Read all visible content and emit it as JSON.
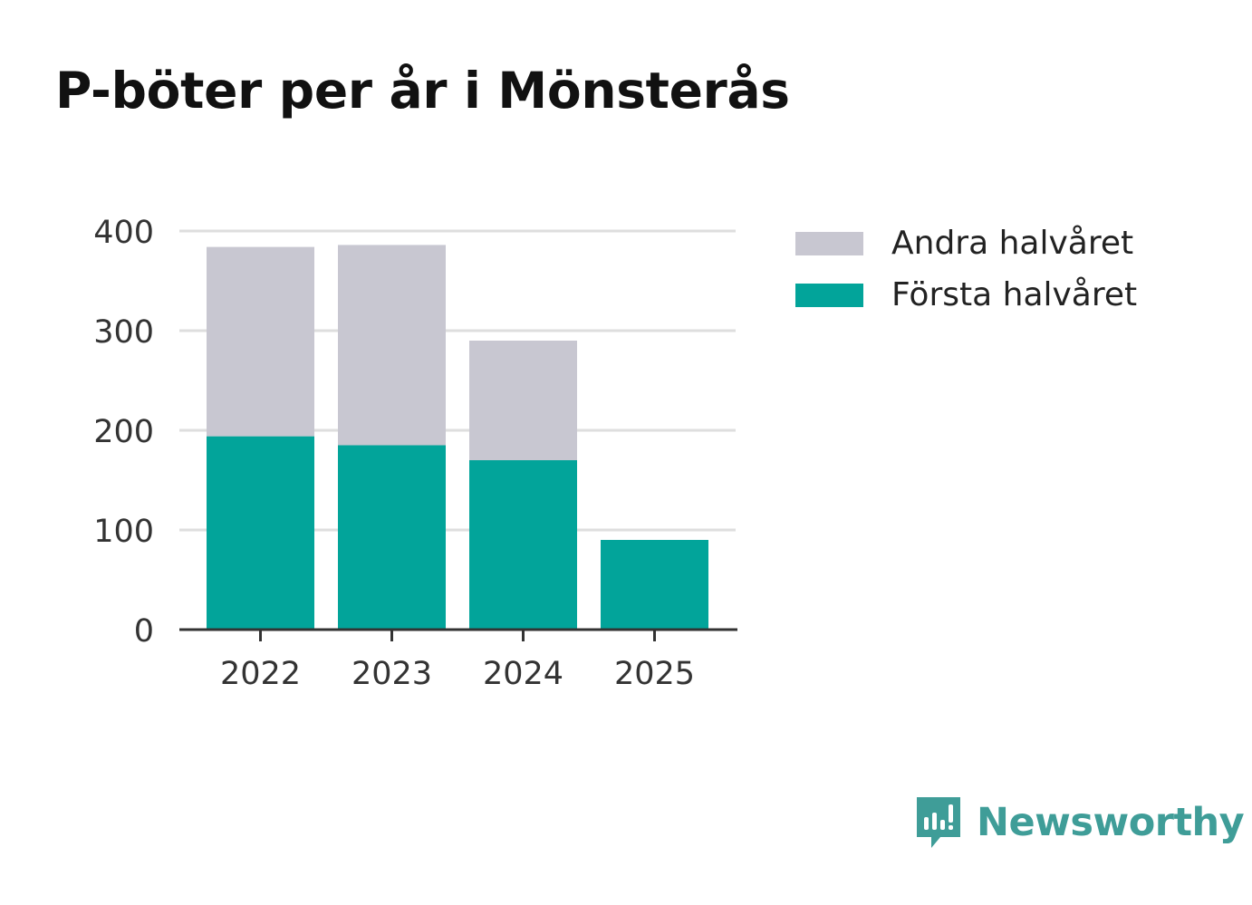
{
  "chart_data": {
    "type": "bar",
    "stacked": true,
    "title": "P-böter per år i Mönsterås",
    "categories": [
      "2022",
      "2023",
      "2024",
      "2025"
    ],
    "series": [
      {
        "name": "Första halvåret",
        "values": [
          194,
          185,
          170,
          90
        ],
        "color": "#02a49a"
      },
      {
        "name": "Andra halvåret",
        "values": [
          190,
          201,
          120,
          0
        ],
        "color": "#c8c7d1"
      }
    ],
    "legend": [
      "Andra halvåret",
      "Första halvåret"
    ],
    "yticks": [
      "0",
      "100",
      "200",
      "300",
      "400"
    ],
    "ylim": [
      0,
      400
    ],
    "xlabel": "",
    "ylabel": "",
    "grid": true,
    "legend_position": "right"
  },
  "legend_items": [
    {
      "label": "Andra halvåret",
      "color": "#c8c7d1"
    },
    {
      "label": "Första halvåret",
      "color": "#02a49a"
    }
  ],
  "brand": {
    "name": "Newsworthy",
    "icon": "newsworthy-logo-icon",
    "color": "#3f9d98"
  }
}
